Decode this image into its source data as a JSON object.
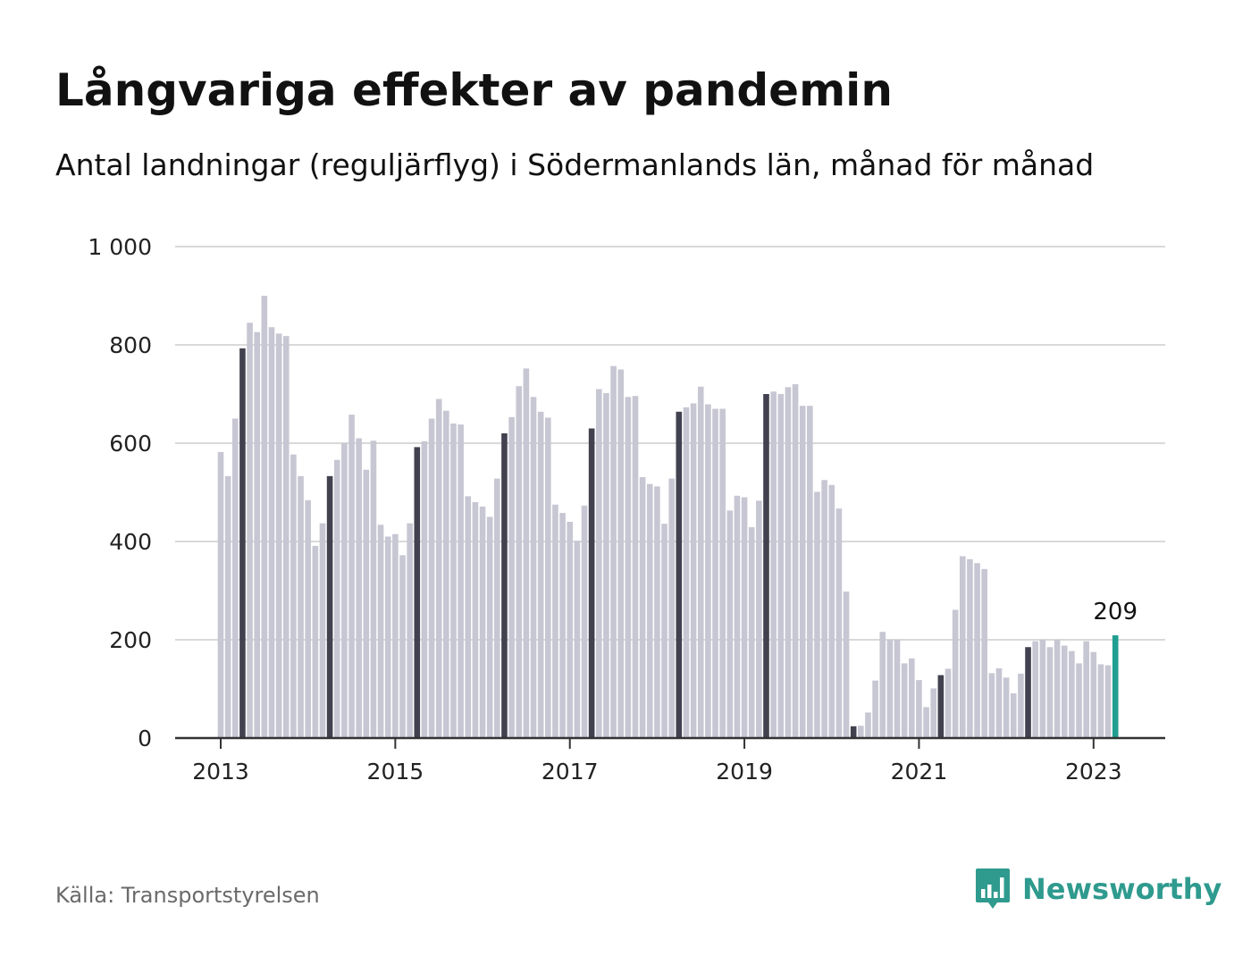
{
  "header": {
    "title": "Långvariga effekter av pandemin",
    "subtitle": "Antal landningar (reguljärflyg) i Södermanlands län, månad för månad"
  },
  "footer": {
    "source": "Källa: Transportstyrelsen",
    "brand": "Newsworthy"
  },
  "colors": {
    "bar": "#c7c6d3",
    "april_bar": "#41414f",
    "latest_bar": "#1f9e91",
    "grid": "#d9d9d9",
    "axis": "#333333",
    "text": "#111111",
    "brand": "#2f9a8e"
  },
  "icons": {
    "brand_logo": "bar-chart-speech-bubble-icon"
  },
  "chart_data": {
    "type": "bar",
    "start": "2013-01",
    "ylim": [
      0,
      1000
    ],
    "yticks": [
      0,
      200,
      400,
      600,
      800,
      1000
    ],
    "ytick_labels": [
      "0",
      "200",
      "400",
      "600",
      "800",
      "1 000"
    ],
    "xticks": [
      "2013",
      "2015",
      "2017",
      "2019",
      "2021",
      "2023"
    ],
    "grid": true,
    "highlight_month": "april",
    "annotation": {
      "month": "2023-04",
      "label": "209"
    },
    "values": [
      582,
      533,
      650,
      793,
      845,
      826,
      900,
      836,
      823,
      818,
      577,
      533,
      484,
      391,
      437,
      533,
      566,
      600,
      658,
      610,
      546,
      605,
      434,
      410,
      415,
      372,
      437,
      592,
      604,
      650,
      690,
      666,
      640,
      638,
      492,
      480,
      471,
      450,
      528,
      620,
      653,
      716,
      752,
      694,
      664,
      652,
      475,
      458,
      440,
      401,
      473,
      630,
      710,
      702,
      757,
      750,
      694,
      696,
      531,
      517,
      512,
      436,
      528,
      664,
      673,
      681,
      715,
      679,
      670,
      670,
      463,
      493,
      490,
      429,
      483,
      700,
      705,
      700,
      714,
      720,
      676,
      676,
      501,
      525,
      515,
      467,
      298,
      24,
      25,
      52,
      117,
      216,
      200,
      200,
      152,
      162,
      118,
      63,
      101,
      128,
      141,
      261,
      370,
      364,
      356,
      344,
      132,
      142,
      123,
      91,
      131,
      185,
      197,
      200,
      185,
      200,
      188,
      177,
      152,
      197,
      175,
      150,
      148,
      209
    ]
  }
}
